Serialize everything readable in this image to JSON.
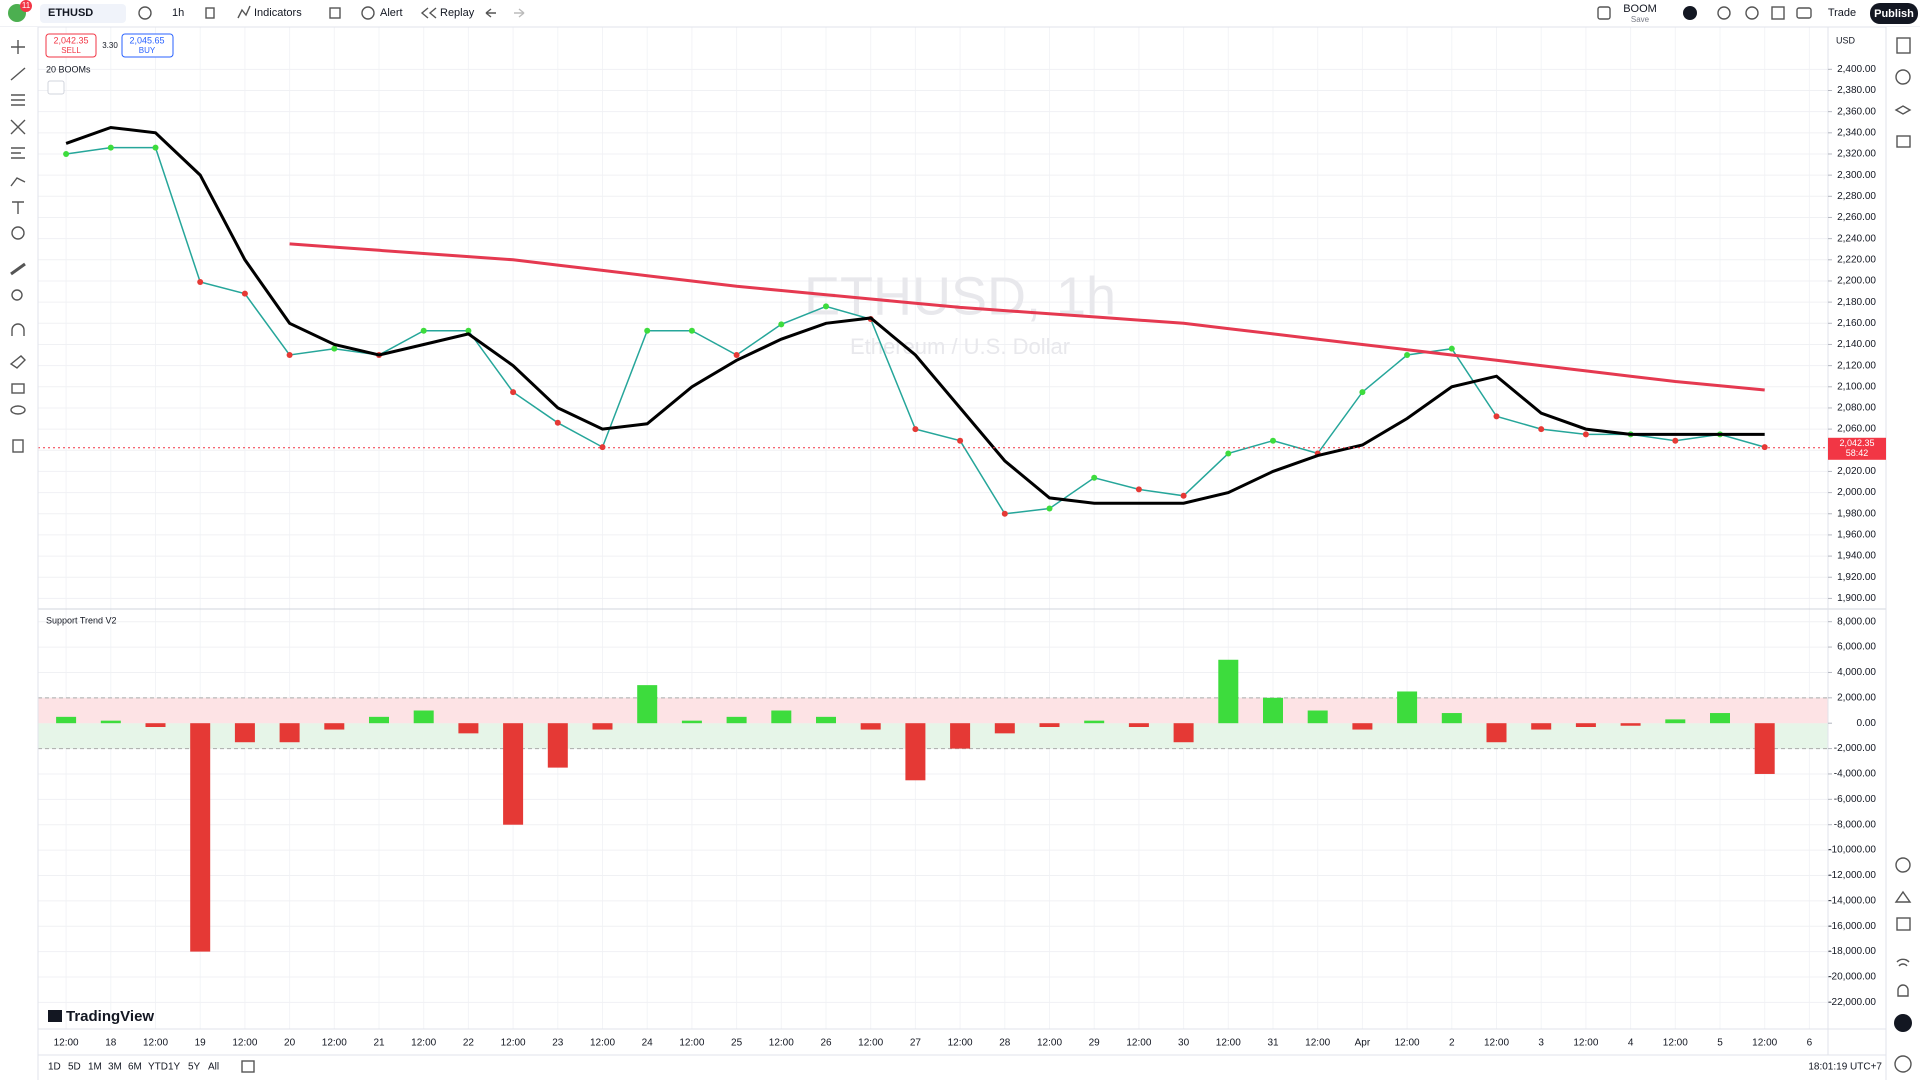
{
  "header": {
    "avatar_badge": "11",
    "symbol": "ETHUSD",
    "interval": "1h",
    "indicators": "Indicators",
    "alert": "Alert",
    "replay": "Replay",
    "layout_name": "BOOM",
    "layout_status": "Save",
    "trade": "Trade",
    "publish": "Publish"
  },
  "order_panel": {
    "sell_price": "2,042.35",
    "sell": "SELL",
    "spread": "3.30",
    "buy_price": "2,045.65",
    "buy": "BUY"
  },
  "legend": {
    "main_indicator": "20 BOOMs",
    "oscillator": "Support Trend V2"
  },
  "watermark": {
    "title": "ETHUSD, 1h",
    "subtitle": "Ethereum / U.S. Dollar"
  },
  "currency": "USD",
  "brand": "TradingView",
  "countdown": "58:42",
  "bottom_bar": {
    "ranges": [
      "1D",
      "5D",
      "1M",
      "3M",
      "6M",
      "YTD",
      "1Y",
      "5Y",
      "All"
    ],
    "clock": "18:01:19 UTC+7"
  },
  "chart_data": [
    {
      "type": "line",
      "categories": [
        "12:00",
        "18",
        "12:00",
        "19",
        "12:00",
        "20",
        "12:00",
        "21",
        "12:00",
        "22",
        "12:00",
        "23",
        "12:00",
        "24",
        "12:00",
        "25",
        "12:00",
        "26",
        "12:00",
        "27",
        "12:00",
        "28",
        "12:00",
        "29",
        "12:00",
        "30",
        "12:00",
        "31",
        "12:00",
        "Apr",
        "12:00",
        "2",
        "12:00",
        "3",
        "12:00",
        "4",
        "12:00",
        "5",
        "12:00",
        "6"
      ],
      "series": [
        {
          "color": "#26a69a",
          "values": [
            2320,
            2326,
            2326,
            2199,
            2188,
            2130,
            2136,
            2130,
            2153,
            2153,
            2095,
            2066,
            2043,
            2153,
            2153,
            2130,
            2159,
            2176,
            2164,
            2060,
            2049,
            1980,
            1985,
            2014,
            2003,
            1997,
            2037,
            2049,
            2037,
            2095,
            2130,
            2136,
            2072,
            2060,
            2055,
            2055,
            2049,
            2055,
            2043,
            null
          ]
        },
        {
          "color": "#000000",
          "values": [
            2330,
            2345,
            2340,
            2300,
            2220,
            2160,
            2140,
            2130,
            2140,
            2150,
            2120,
            2080,
            2060,
            2065,
            2100,
            2125,
            2145,
            2160,
            2165,
            2130,
            2080,
            2030,
            1995,
            1990,
            1990,
            1990,
            2000,
            2020,
            2035,
            2045,
            2070,
            2100,
            2110,
            2075,
            2060,
            2055,
            2055,
            2055,
            2055,
            null
          ]
        },
        {
          "color": "#e53950",
          "values": [
            null,
            null,
            null,
            null,
            null,
            2235,
            2232,
            2229,
            2226,
            2223,
            2220,
            2215,
            2210,
            2205,
            2200,
            2195,
            2191,
            2187,
            2183,
            2179,
            2175,
            2172,
            2169,
            2166,
            2163,
            2160,
            2155,
            2150,
            2145,
            2140,
            2135,
            2130,
            2125,
            2120,
            2115,
            2110,
            2105,
            2101,
            2097,
            null
          ]
        }
      ],
      "ylim": [
        1890,
        2440
      ],
      "yticks": [
        {
          "value": 2400,
          "label": "2,400.00"
        },
        {
          "value": 2380,
          "label": "2,380.00"
        },
        {
          "value": 2360,
          "label": "2,360.00"
        },
        {
          "value": 2340,
          "label": "2,340.00"
        },
        {
          "value": 2320,
          "label": "2,320.00"
        },
        {
          "value": 2300,
          "label": "2,300.00"
        },
        {
          "value": 2280,
          "label": "2,280.00"
        },
        {
          "value": 2260,
          "label": "2,260.00"
        },
        {
          "value": 2240,
          "label": "2,240.00"
        },
        {
          "value": 2220,
          "label": "2,220.00"
        },
        {
          "value": 2200,
          "label": "2,200.00"
        },
        {
          "value": 2180,
          "label": "2,180.00"
        },
        {
          "value": 2160,
          "label": "2,160.00"
        },
        {
          "value": 2140,
          "label": "2,140.00"
        },
        {
          "value": 2120,
          "label": "2,120.00"
        },
        {
          "value": 2100,
          "label": "2,100.00"
        },
        {
          "value": 2080,
          "label": "2,080.00"
        },
        {
          "value": 2060,
          "label": "2,060.00"
        },
        {
          "value": 2040,
          "label": "2,040.00"
        },
        {
          "value": 2020,
          "label": "2,020.00"
        },
        {
          "value": 2000,
          "label": "2,000.00"
        },
        {
          "value": 1980,
          "label": "1,980.00"
        },
        {
          "value": 1960,
          "label": "1,960.00"
        },
        {
          "value": 1940,
          "label": "1,940.00"
        },
        {
          "value": 1920,
          "label": "1,920.00"
        },
        {
          "value": 1900,
          "label": "1,900.00"
        }
      ],
      "last_price": {
        "value": 2042.35,
        "label": "2,042.35"
      },
      "grid": true
    },
    {
      "type": "bar",
      "values": [
        500,
        200,
        -300,
        -18000,
        -1500,
        -1500,
        -500,
        500,
        1000,
        -800,
        -8000,
        -3500,
        -500,
        3000,
        200,
        500,
        1000,
        500,
        -500,
        -4500,
        -2000,
        -800,
        -300,
        200,
        -300,
        -1500,
        5000,
        2000,
        1000,
        -500,
        2500,
        800,
        -1500,
        -500,
        -300,
        -200,
        300,
        800,
        -4000,
        null
      ],
      "positive_color": "#3ddc3d",
      "negative_color": "#e53935",
      "bands": [
        -2000,
        2000
      ],
      "ylim": [
        -24100,
        9000
      ],
      "yticks": [
        {
          "value": 8000,
          "label": "8,000.00"
        },
        {
          "value": 6000,
          "label": "6,000.00"
        },
        {
          "value": 4000,
          "label": "4,000.00"
        },
        {
          "value": 2000,
          "label": "2,000.00"
        },
        {
          "value": 0,
          "label": "0.00"
        },
        {
          "value": -2000,
          "label": "-2,000.00"
        },
        {
          "value": -4000,
          "label": "-4,000.00"
        },
        {
          "value": -6000,
          "label": "-6,000.00"
        },
        {
          "value": -8000,
          "label": "-8,000.00"
        },
        {
          "value": -10000,
          "label": "-10,000.00"
        },
        {
          "value": -12000,
          "label": "-12,000.00"
        },
        {
          "value": -14000,
          "label": "-14,000.00"
        },
        {
          "value": -16000,
          "label": "-16,000.00"
        },
        {
          "value": -18000,
          "label": "-18,000.00"
        },
        {
          "value": -20000,
          "label": "-20,000.00"
        },
        {
          "value": -22000,
          "label": "-22,000.00"
        }
      ],
      "grid": true
    }
  ]
}
